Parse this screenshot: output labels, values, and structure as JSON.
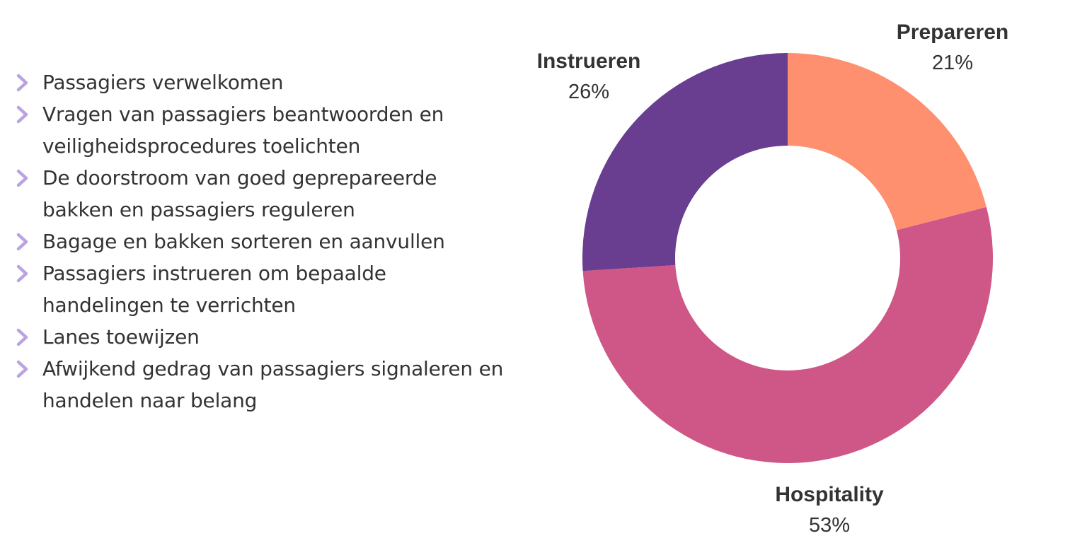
{
  "bullets": [
    {
      "text": "Passagiers verwelkomen",
      "lines": [
        "Passagiers verwelkomen"
      ]
    },
    {
      "text": "Vragen van passagiers beantwoorden en veiligheidsprocedures toelichten",
      "lines": [
        "Vragen van passagiers beantwoorden en",
        "veiligheidsprocedures toelichten"
      ]
    },
    {
      "text": "De doorstroom van goed geprepareerde bakken en passagiers reguleren",
      "lines": [
        "De doorstroom van goed geprepareerde",
        "bakken en passagiers reguleren"
      ]
    },
    {
      "text": "Bagage en bakken sorteren en aanvullen",
      "lines": [
        "Bagage en bakken sorteren en aanvullen"
      ]
    },
    {
      "text": "Passagiers instrueren om bepaalde handelingen te verrichten",
      "lines": [
        "Passagiers instrueren om bepaalde",
        "handelingen te verrichten"
      ]
    },
    {
      "text": "Lanes toewijzen",
      "lines": [
        "Lanes toewijzen"
      ]
    },
    {
      "text": "Afwijkend gedrag van passagiers signaleren en handelen naar belang",
      "lines": [
        "Afwijkend gedrag van passagiers signaleren en",
        "handelen naar belang"
      ]
    }
  ],
  "bullet_icon": "chevron-right-icon",
  "bullet_color": "#b9a3e0",
  "text_color": "#333333",
  "chart_data": {
    "type": "pie",
    "style": "donut",
    "start_angle": "12 o'clock",
    "direction": "clockwise",
    "slices": [
      {
        "label": "Prepareren",
        "value": 21,
        "display": "21%",
        "color": "#fe9070"
      },
      {
        "label": "Hospitality",
        "value": 53,
        "display": "53%",
        "color": "#cf5787"
      },
      {
        "label": "Instrueren",
        "value": 26,
        "display": "26%",
        "color": "#693d8f"
      }
    ]
  }
}
